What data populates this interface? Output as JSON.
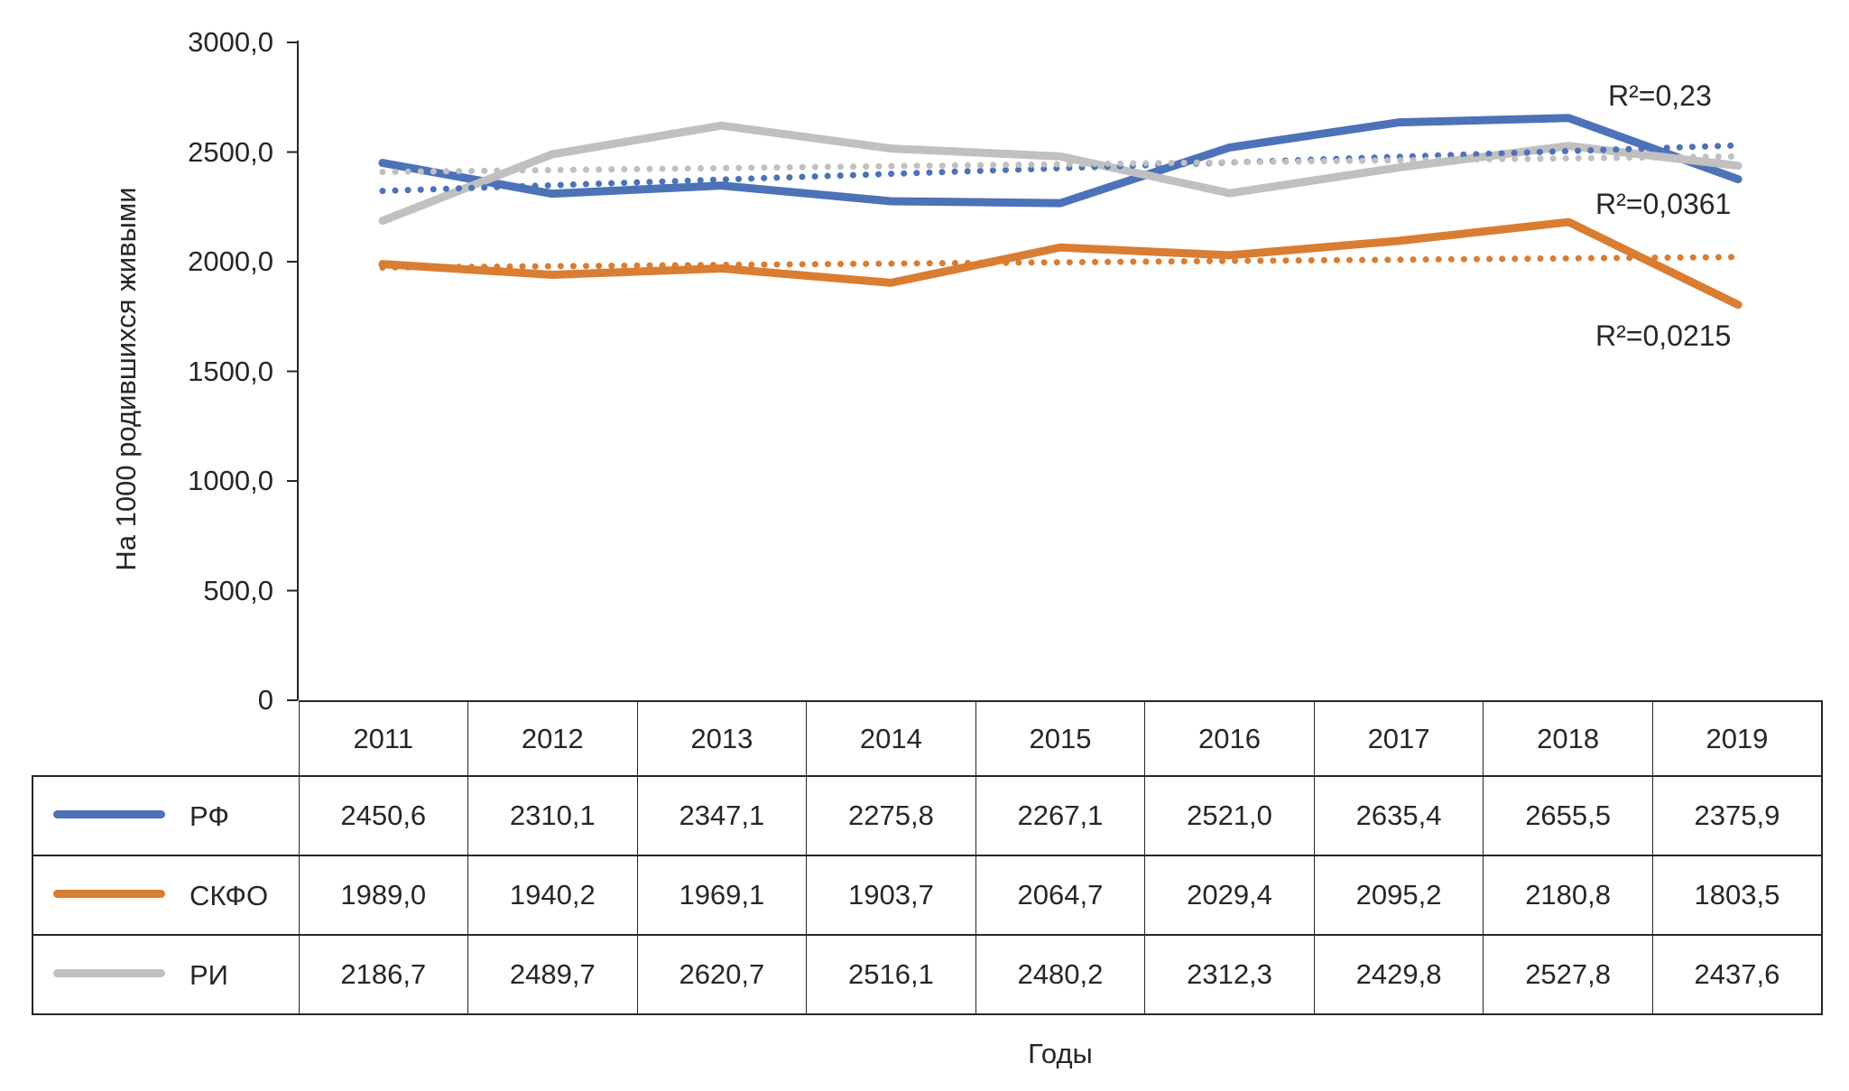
{
  "chart_data": {
    "type": "line",
    "categories": [
      "2011",
      "2012",
      "2013",
      "2014",
      "2015",
      "2016",
      "2017",
      "2018",
      "2019"
    ],
    "series": [
      {
        "id": "rf",
        "name": "РФ",
        "color": "#4C72B8",
        "values": [
          2450.6,
          2310.1,
          2347.1,
          2275.8,
          2267.1,
          2521.0,
          2635.4,
          2655.5,
          2375.9
        ],
        "r2_label": "R²=0,23"
      },
      {
        "id": "skfo",
        "name": "СКФО",
        "color": "#D97D33",
        "values": [
          1989.0,
          1940.2,
          1969.1,
          1903.7,
          2064.7,
          2029.4,
          2095.2,
          2180.8,
          1803.5
        ],
        "r2_label": "R²=0,0215"
      },
      {
        "id": "ri",
        "name": "РИ",
        "color": "#C0C0C0",
        "values": [
          2186.7,
          2489.7,
          2620.7,
          2516.1,
          2480.2,
          2312.3,
          2429.8,
          2527.8,
          2437.6
        ],
        "r2_label": "R²=0,0361"
      }
    ],
    "trendlines": "linear-dotted",
    "ylabel": "На 1000 родившихся живыми",
    "xlabel": "Годы",
    "ylim": [
      0,
      3000
    ],
    "ytick_step": 500,
    "ytick_labels": [
      "3000,0",
      "2500,0",
      "2000,0",
      "1500,0",
      "1000,0",
      "500,0",
      "0"
    ],
    "grid": "off",
    "legend_position": "table-left"
  },
  "table": {
    "rows": [
      [
        "2450,6",
        "2310,1",
        "2347,1",
        "2275,8",
        "2267,1",
        "2521,0",
        "2635,4",
        "2655,5",
        "2375,9"
      ],
      [
        "1989,0",
        "1940,2",
        "1969,1",
        "1903,7",
        "2064,7",
        "2029,4",
        "2095,2",
        "2180,8",
        "1803,5"
      ],
      [
        "2186,7",
        "2489,7",
        "2620,7",
        "2516,1",
        "2480,2",
        "2312,3",
        "2429,8",
        "2527,8",
        "2437,6"
      ]
    ]
  },
  "axis_colors": {
    "line": "#262626",
    "text": "#262626"
  }
}
